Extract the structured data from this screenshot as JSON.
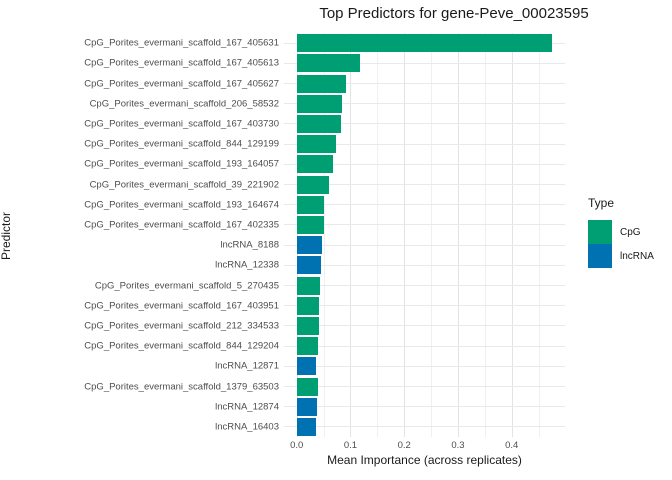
{
  "chart_data": {
    "type": "bar",
    "orientation": "horizontal",
    "title": "Top Predictors for gene-Peve_00023595",
    "xlabel": "Mean Importance (across replicates)",
    "ylabel": "Predictor",
    "xlim": [
      0,
      0.5
    ],
    "x_tick_labels": [
      "0.0",
      "0.1",
      "0.2",
      "0.3",
      "0.4"
    ],
    "x_tick_values": [
      0,
      0.1,
      0.2,
      0.3,
      0.4
    ],
    "x_minor_tick_values": [
      0.05,
      0.15,
      0.25,
      0.35,
      0.45
    ],
    "grid": true,
    "bars": [
      {
        "label": "CpG_Porites_evermani_scaffold_167_405631",
        "type": "CpG",
        "value": 0.475
      },
      {
        "label": "CpG_Porites_evermani_scaffold_167_405613",
        "type": "CpG",
        "value": 0.118
      },
      {
        "label": "CpG_Porites_evermani_scaffold_167_405627",
        "type": "CpG",
        "value": 0.092
      },
      {
        "label": "CpG_Porites_evermani_scaffold_206_58532",
        "type": "CpG",
        "value": 0.084
      },
      {
        "label": "CpG_Porites_evermani_scaffold_167_403730",
        "type": "CpG",
        "value": 0.082
      },
      {
        "label": "CpG_Porites_evermani_scaffold_844_129199",
        "type": "CpG",
        "value": 0.073
      },
      {
        "label": "CpG_Porites_evermani_scaffold_193_164057",
        "type": "CpG",
        "value": 0.068
      },
      {
        "label": "CpG_Porites_evermani_scaffold_39_221902",
        "type": "CpG",
        "value": 0.06
      },
      {
        "label": "CpG_Porites_evermani_scaffold_193_164674",
        "type": "CpG",
        "value": 0.05
      },
      {
        "label": "CpG_Porites_evermani_scaffold_167_402335",
        "type": "CpG",
        "value": 0.05
      },
      {
        "label": "lncRNA_8188",
        "type": "lncRNA",
        "value": 0.048
      },
      {
        "label": "lncRNA_12338",
        "type": "lncRNA",
        "value": 0.045
      },
      {
        "label": "CpG_Porites_evermani_scaffold_5_270435",
        "type": "CpG",
        "value": 0.043
      },
      {
        "label": "CpG_Porites_evermani_scaffold_167_403951",
        "type": "CpG",
        "value": 0.042
      },
      {
        "label": "CpG_Porites_evermani_scaffold_212_334533",
        "type": "CpG",
        "value": 0.042
      },
      {
        "label": "CpG_Porites_evermani_scaffold_844_129204",
        "type": "CpG",
        "value": 0.04
      },
      {
        "label": "lncRNA_12871",
        "type": "lncRNA",
        "value": 0.036
      },
      {
        "label": "CpG_Porites_evermani_scaffold_1379_63503",
        "type": "CpG",
        "value": 0.039
      },
      {
        "label": "lncRNA_12874",
        "type": "lncRNA",
        "value": 0.037
      },
      {
        "label": "lncRNA_16403",
        "type": "lncRNA",
        "value": 0.036
      }
    ],
    "legend": {
      "title": "Type",
      "position": "right",
      "entries": [
        {
          "label": "CpG",
          "color": "#009E73"
        },
        {
          "label": "lncRNA",
          "color": "#0072B2"
        }
      ]
    },
    "colors": {
      "CpG": "#009E73",
      "lncRNA": "#0072B2"
    }
  }
}
